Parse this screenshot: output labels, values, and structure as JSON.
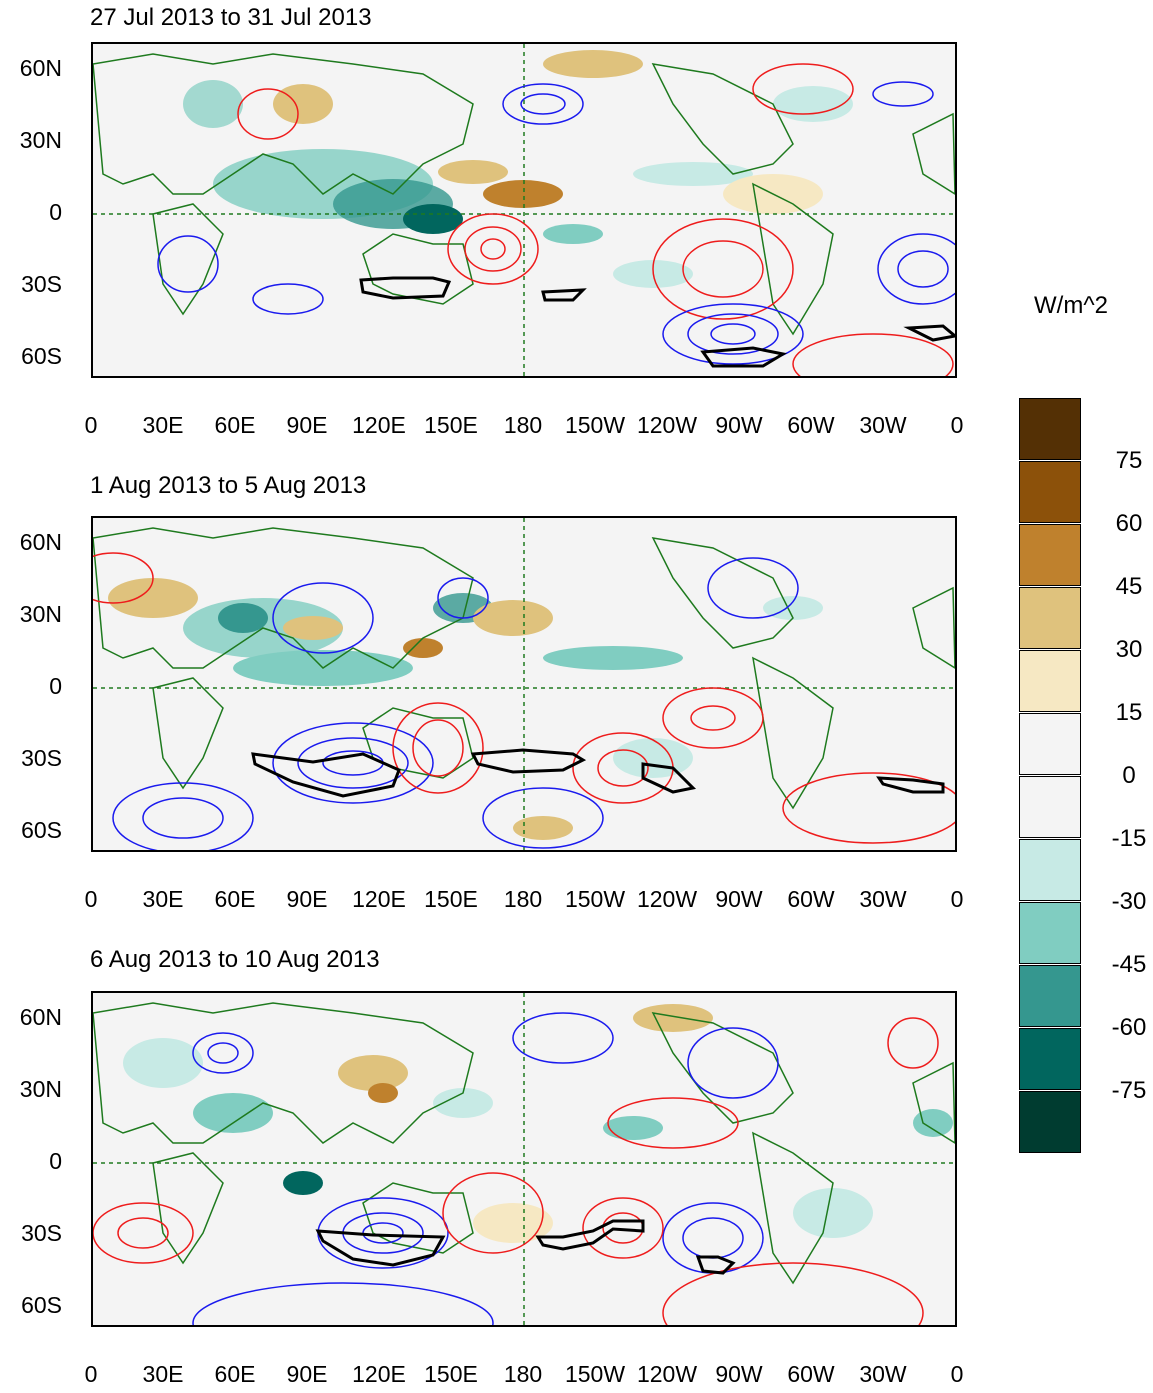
{
  "panels": [
    {
      "id": "p1",
      "title": "27 Jul 2013 to 31 Jul 2013"
    },
    {
      "id": "p2",
      "title": "1 Aug 2013 to 5 Aug 2013"
    },
    {
      "id": "p3",
      "title": "6 Aug 2013 to 10 Aug 2013"
    }
  ],
  "axes": {
    "lat_labels": [
      "60N",
      "30N",
      "0",
      "30S",
      "60S"
    ],
    "lon_labels": [
      "0",
      "30E",
      "60E",
      "90E",
      "120E",
      "150E",
      "180",
      "150W",
      "120W",
      "90W",
      "60W",
      "30W",
      "0"
    ]
  },
  "colorbar": {
    "units": "W/m^2",
    "labels": [
      "75",
      "60",
      "45",
      "30",
      "15",
      "0",
      "-15",
      "-30",
      "-45",
      "-60",
      "-75"
    ],
    "colors": [
      "#543005",
      "#8c510a",
      "#bf812d",
      "#dfc27d",
      "#f6e8c3",
      "#f4f4f4",
      "#f4f4f4",
      "#c7eae5",
      "#80cdc1",
      "#35978f",
      "#01665e",
      "#003c30"
    ]
  },
  "colors": {
    "positive_contour": "#ee1c1c",
    "negative_contour": "#1a1aee",
    "significance_contour": "#000000",
    "coastline": "#1e7a1e",
    "reference_line": "#1e7a1e"
  }
}
